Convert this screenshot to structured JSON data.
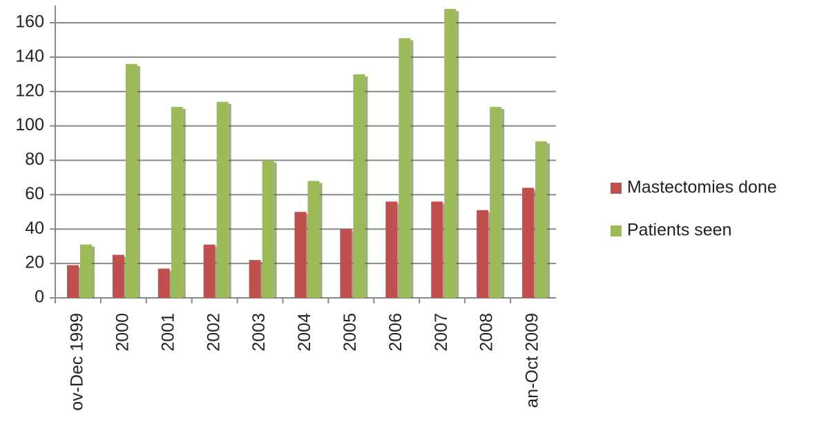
{
  "chart_data": {
    "type": "bar",
    "categories": [
      "ov-Dec 1999",
      "2000",
      "2001",
      "2002",
      "2003",
      "2004",
      "2005",
      "2006",
      "2007",
      "2008",
      "an-Oct 2009"
    ],
    "series": [
      {
        "name": "Mastectomies done",
        "color": "#c0504d",
        "values": [
          19,
          25,
          17,
          31,
          22,
          50,
          40,
          56,
          56,
          51,
          64
        ]
      },
      {
        "name": "Patients seen",
        "color": "#9bbb59",
        "values": [
          31,
          136,
          111,
          114,
          80,
          68,
          130,
          151,
          168,
          111,
          91
        ]
      }
    ],
    "ylim": [
      0,
      170
    ],
    "yticks": [
      0,
      20,
      40,
      60,
      80,
      100,
      120,
      140,
      160
    ],
    "grid": true,
    "legend": "right"
  }
}
